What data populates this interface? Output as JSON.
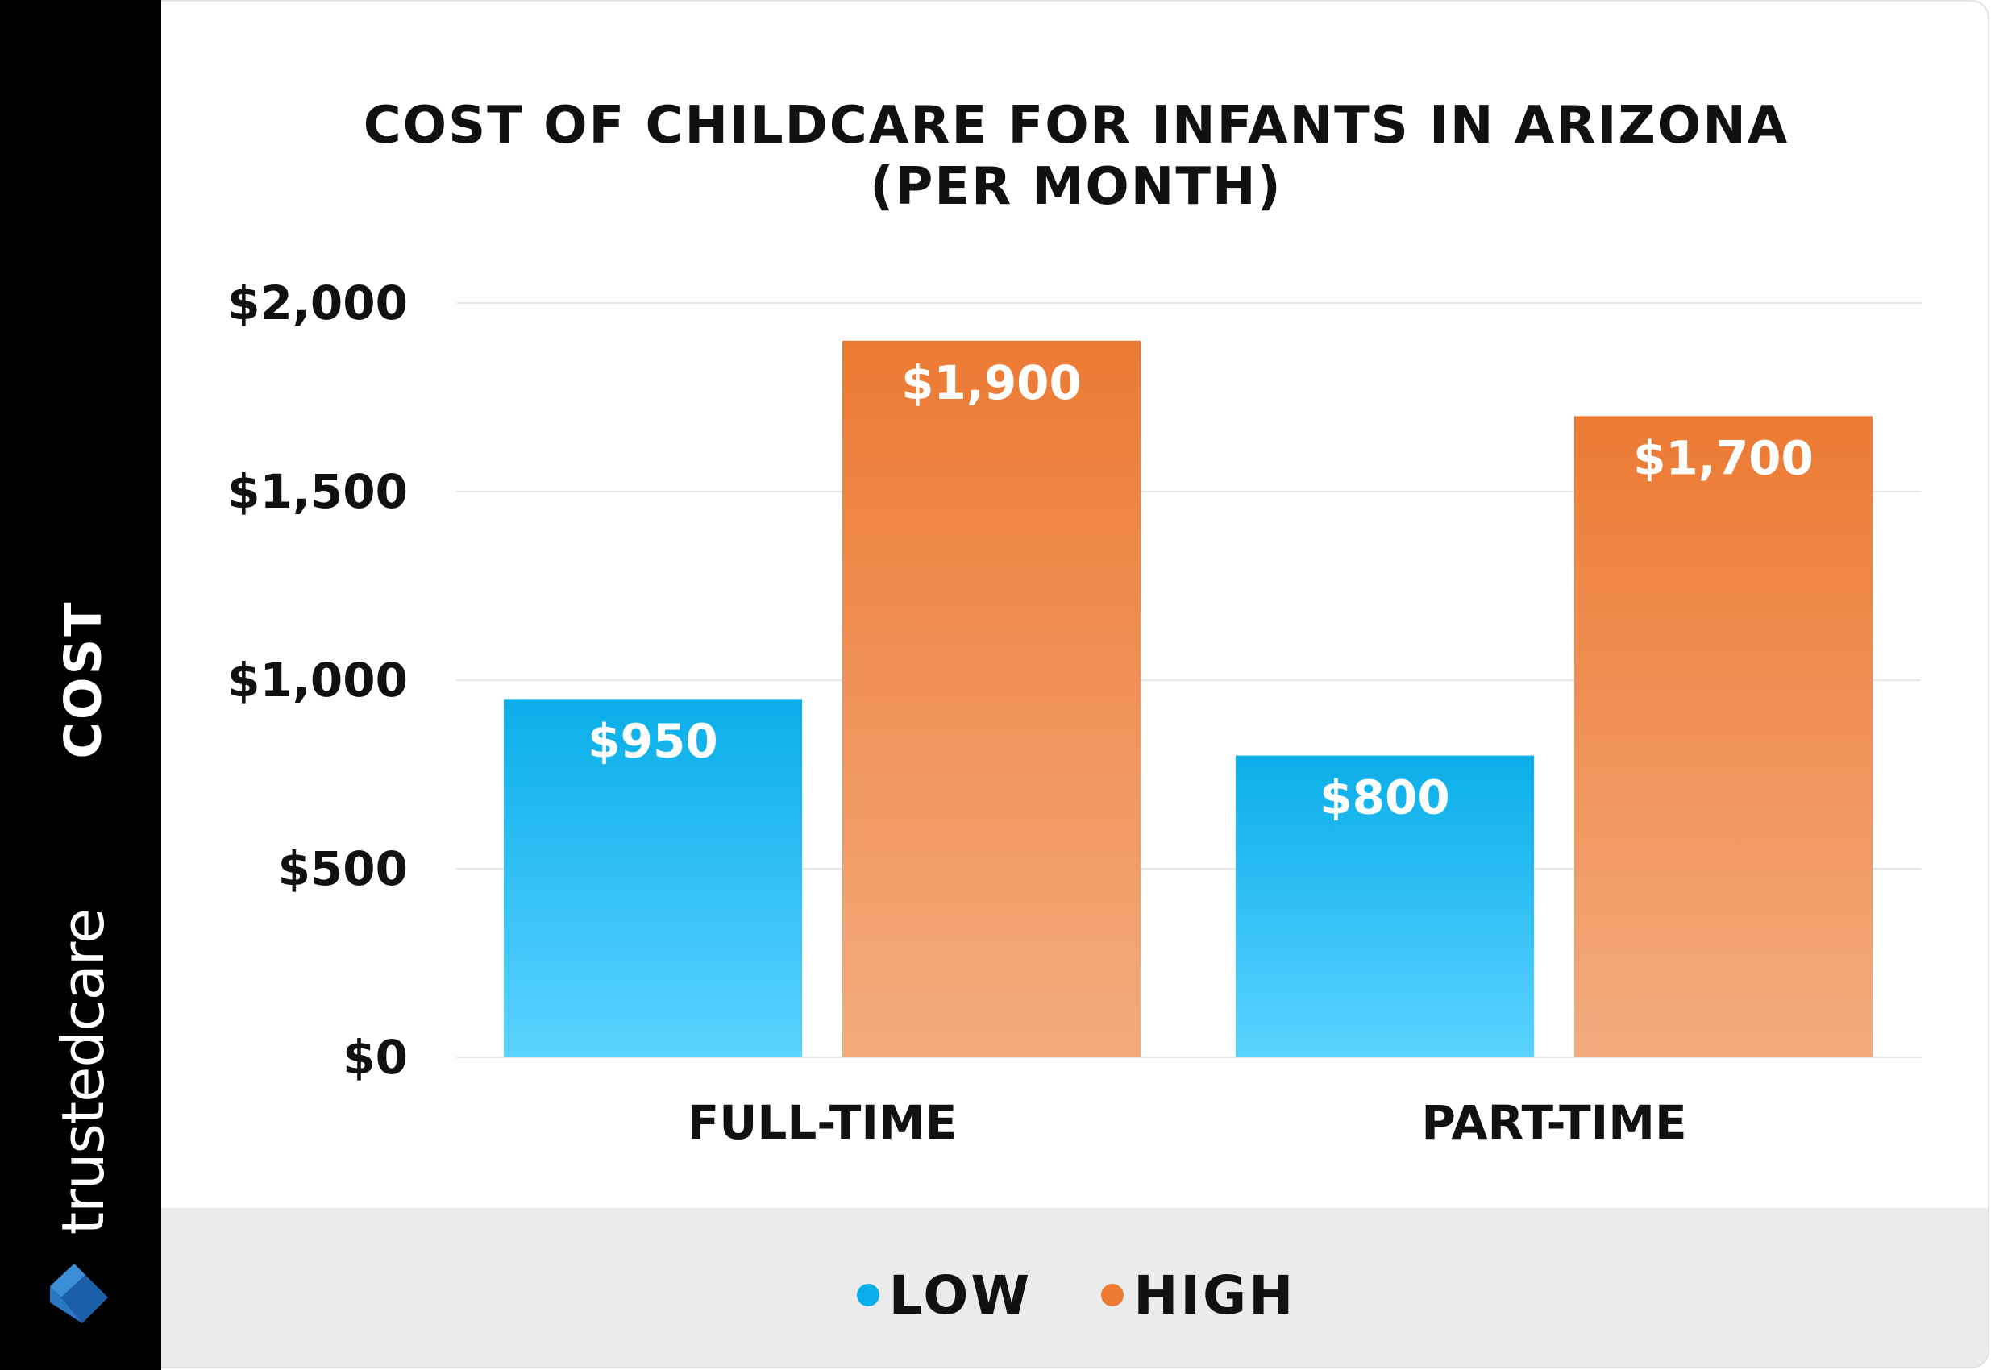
{
  "brand": {
    "name": "trustedcare"
  },
  "colors": {
    "low_top": "#0aaee9",
    "low_bottom": "#5ad3ff",
    "high_top": "#ec7a33",
    "high_bottom": "#f3ab7e",
    "sidebar": "#000000",
    "legend_band": "#ebebeb",
    "grid": "#e6e6e6"
  },
  "chart_data": {
    "type": "bar",
    "title": "COST OF CHILDCARE FOR INFANTS IN ARIZONA",
    "subtitle": "(PER MONTH)",
    "ylabel": "COST",
    "xlabel": "",
    "categories": [
      "FULL-TIME",
      "PART-TIME"
    ],
    "series": [
      {
        "name": "LOW",
        "values": [
          950,
          800
        ],
        "labels": [
          "$950",
          "$800"
        ]
      },
      {
        "name": "HIGH",
        "values": [
          1900,
          1700
        ],
        "labels": [
          "$1,900",
          "$1,700"
        ]
      }
    ],
    "ylim": [
      0,
      2000
    ],
    "yticks": [
      0,
      500,
      1000,
      1500,
      2000
    ],
    "ytick_labels": [
      "$0",
      "$500",
      "$1,000",
      "$1,500",
      "$2,000"
    ],
    "grid": true,
    "legend": {
      "placement": "bottom",
      "items": [
        "LOW",
        "HIGH"
      ]
    }
  }
}
